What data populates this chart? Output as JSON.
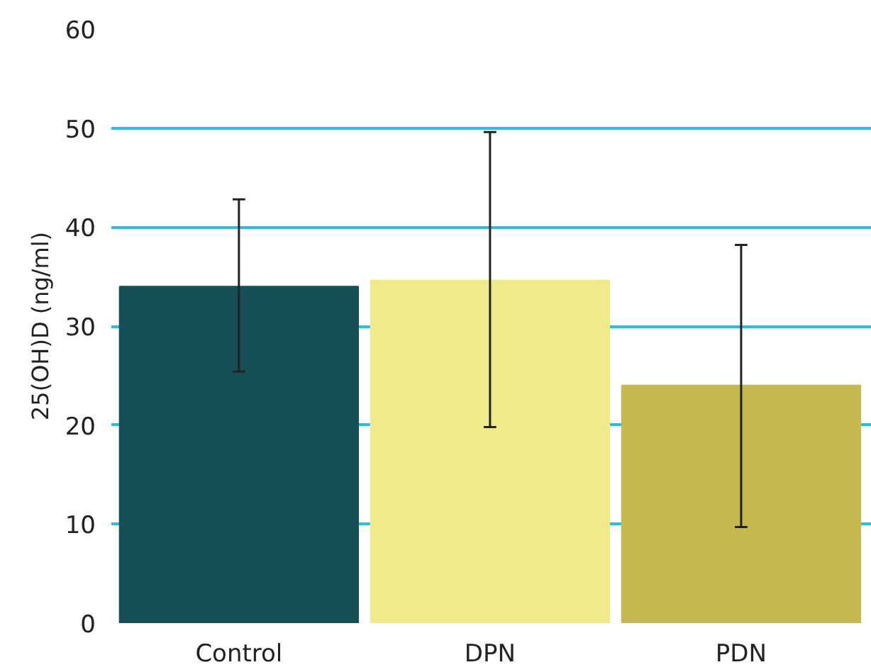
{
  "chart_data": {
    "type": "bar",
    "ylabel": "25(OH)D (ng/ml)",
    "categories": [
      "Control",
      "DPN",
      "PDN"
    ],
    "values": [
      34.0,
      34.6,
      24.0
    ],
    "colors": [
      "#174f56",
      "#f0eb8a",
      "#c4b84f"
    ],
    "errors": [
      [
        25.4,
        42.8
      ],
      [
        19.8,
        49.6
      ],
      [
        9.7,
        38.2
      ]
    ],
    "ylim": [
      0,
      60
    ],
    "yticks": [
      0,
      10,
      20,
      30,
      40,
      50,
      60
    ],
    "grid": "y"
  }
}
